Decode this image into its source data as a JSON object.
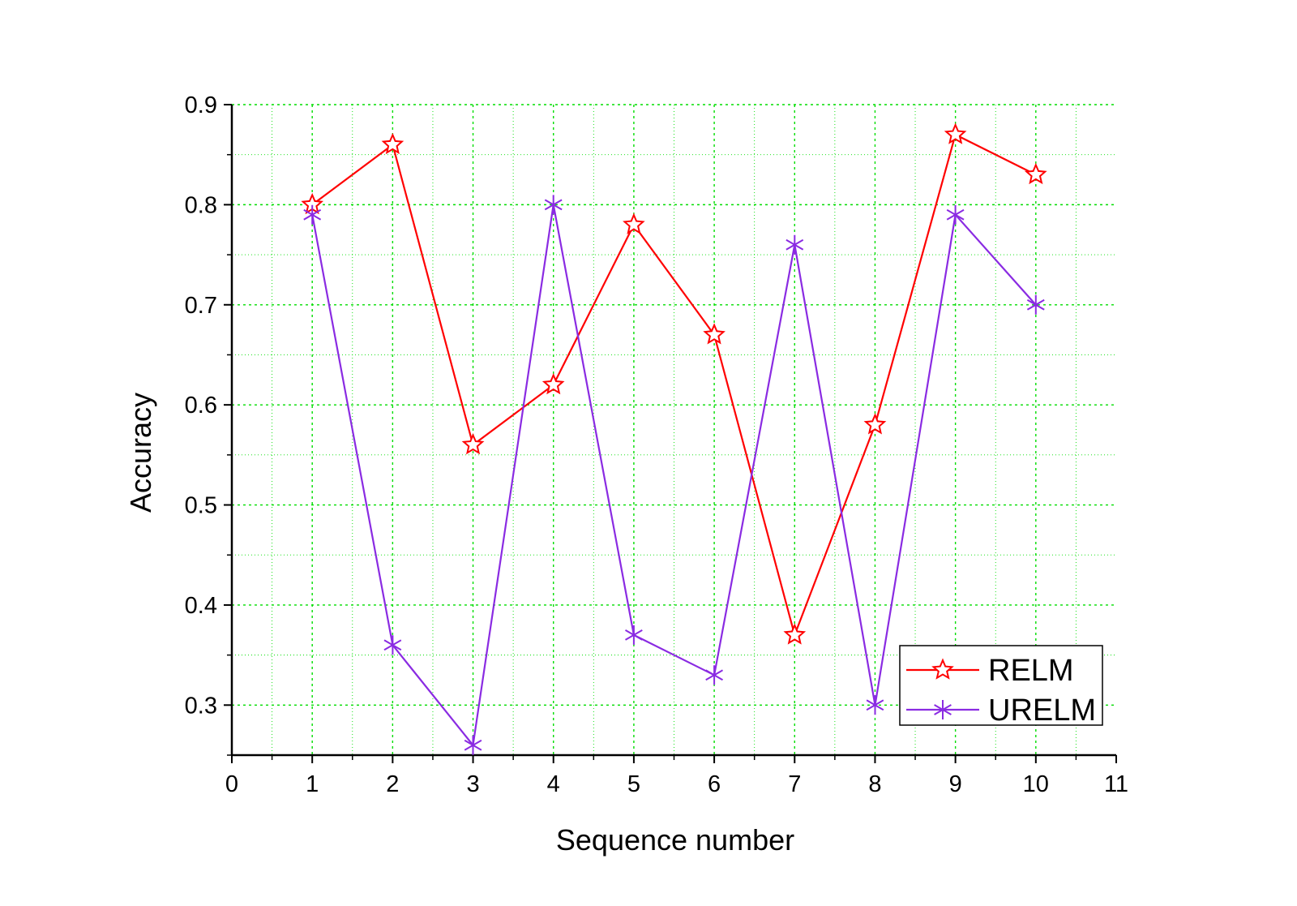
{
  "chart_data": {
    "type": "line",
    "xlabel": "Sequence number",
    "ylabel": "Accuracy",
    "xlim": [
      0,
      11
    ],
    "ylim": [
      0.25,
      0.9
    ],
    "x_ticks": [
      "0",
      "1",
      "2",
      "3",
      "4",
      "5",
      "6",
      "7",
      "8",
      "9",
      "10",
      "11"
    ],
    "y_ticks": [
      "0.3",
      "0.4",
      "0.5",
      "0.6",
      "0.7",
      "0.8",
      "0.9"
    ],
    "grid": true,
    "grid_color": "#00dd00",
    "legend_position": "bottom-right",
    "x": [
      1,
      2,
      3,
      4,
      5,
      6,
      7,
      8,
      9,
      10
    ],
    "series": [
      {
        "name": "RELM",
        "color": "#ff0000",
        "marker": "star",
        "values": [
          0.8,
          0.86,
          0.56,
          0.62,
          0.78,
          0.67,
          0.37,
          0.58,
          0.87,
          0.83
        ]
      },
      {
        "name": "URELM",
        "color": "#8a2be2",
        "marker": "asterisk",
        "values": [
          0.79,
          0.36,
          0.26,
          0.8,
          0.37,
          0.33,
          0.76,
          0.3,
          0.79,
          0.7
        ]
      }
    ]
  }
}
